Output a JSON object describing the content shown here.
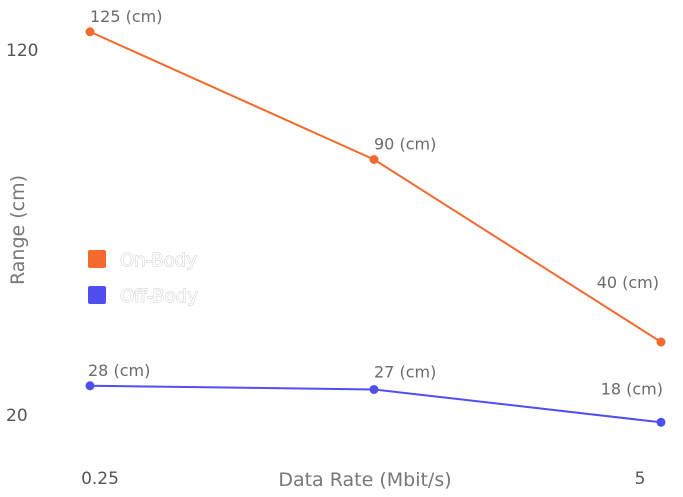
{
  "chart_data": {
    "type": "line",
    "title": "",
    "xlabel": "Data Rate (Mbit/s)",
    "ylabel": "Range (cm)",
    "x": [
      "0.25",
      "1",
      "5"
    ],
    "x_tick_labels": [
      "0.25",
      "",
      "5"
    ],
    "y_tick_labels": [
      "20",
      "120"
    ],
    "ylim": [
      20,
      120
    ],
    "grid": false,
    "legend_position": "left-middle",
    "series": [
      {
        "name": "On-Body",
        "color": "#f26a2e",
        "values": [
          125,
          90,
          40
        ],
        "labels": [
          "125 (cm)",
          "90 (cm)",
          "40 (cm)"
        ]
      },
      {
        "name": "Off-Body",
        "color": "#4f4ff0",
        "values": [
          28,
          27,
          18
        ],
        "labels": [
          "28 (cm)",
          "27 (cm)",
          "18 (cm)"
        ]
      }
    ]
  }
}
